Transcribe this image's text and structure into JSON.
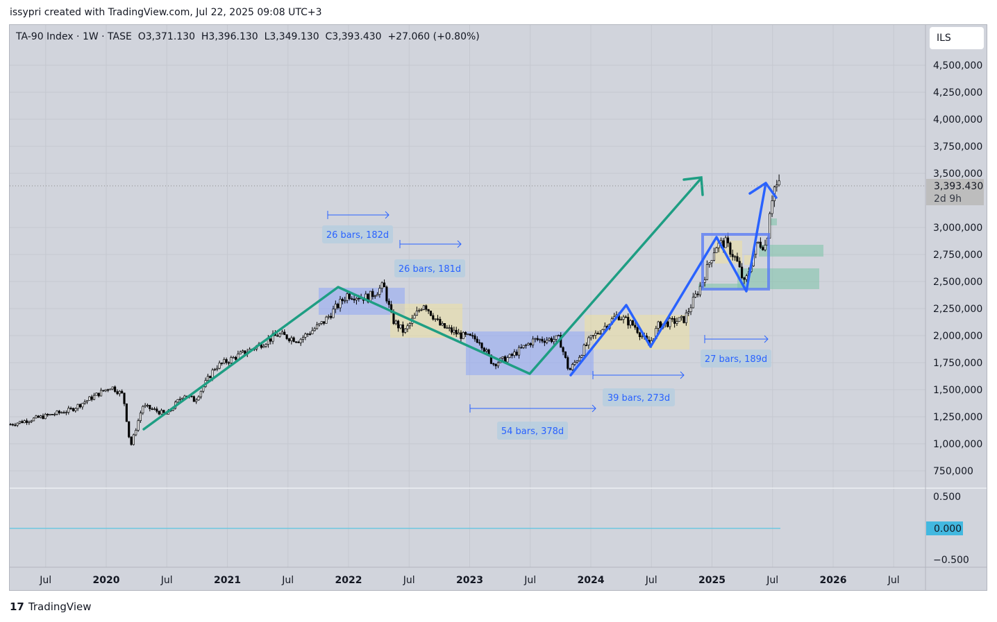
{
  "credit": "issypri created with TradingView.com, Jul 22, 2025 09:08 UTC+3",
  "legend": "TA-90 Index · 1W · TASE  O3,371.130  H3,396.130  L3,349.130  C3,393.430  +27.060 (+0.80%)",
  "currency": "ILS",
  "price_tag": {
    "value": "3,393.430",
    "countdown": "2d 9h"
  },
  "indicator": {
    "ticks": [
      "0.500",
      "0.000",
      "−0.500"
    ],
    "current": "0.000"
  },
  "footer": {
    "brand": "TradingView"
  },
  "measures": [
    "26 bars, 182d",
    "26 bars, 181d",
    "54 bars, 378d",
    "39 bars, 273d",
    "27 bars, 189d"
  ],
  "colors": {
    "green": "#1e9e83",
    "blue": "#2962ff",
    "pane": "#d1d4dc"
  },
  "chart_data": {
    "type": "candlestick",
    "title": "TA-90 Index · 1W · TASE",
    "y_ticks": [
      "4,500,000",
      "4,250,000",
      "4,000,000",
      "3,750,000",
      "3,500,000",
      "3,000,000",
      "2,750,000",
      "2,500,000",
      "2,250,000",
      "2,000,000",
      "1,750,000",
      "1,500,000",
      "1,250,000",
      "1,000,000",
      "750,000"
    ],
    "y_tick_values": [
      4500000,
      4250000,
      4000000,
      3750000,
      3500000,
      3000000,
      2750000,
      2500000,
      2250000,
      2000000,
      1750000,
      1500000,
      1250000,
      1000000,
      750000
    ],
    "ylim": [
      560000,
      4950000
    ],
    "x_ticks": [
      "Jul",
      "2020",
      "Jul",
      "2021",
      "Jul",
      "2022",
      "Jul",
      "2023",
      "Jul",
      "2024",
      "Jul",
      "2025",
      "Jul",
      "2026",
      "Jul"
    ],
    "x_tick_values": [
      2019.5,
      2020,
      2020.5,
      2021,
      2021.5,
      2022,
      2022.5,
      2023,
      2023.5,
      2024,
      2024.5,
      2025,
      2025.5,
      2026,
      2026.5
    ],
    "xlim": [
      2019.2,
      2026.77
    ],
    "series": [
      {
        "name": "TA-90 weekly close (approx.)",
        "x": [
          2019.21,
          2019.7,
          2020.04,
          2020.14,
          2020.2,
          2020.3,
          2020.5,
          2020.64,
          2020.73,
          2020.9,
          2021.19,
          2021.42,
          2021.59,
          2021.79,
          2021.99,
          2022.16,
          2022.29,
          2022.36,
          2022.46,
          2022.62,
          2022.76,
          2022.93,
          2023.08,
          2023.19,
          2023.33,
          2023.53,
          2023.74,
          2023.82,
          2023.99,
          2024.22,
          2024.36,
          2024.48,
          2024.56,
          2024.77,
          2024.91,
          2025.03,
          2025.11,
          2025.2,
          2025.27,
          2025.37,
          2025.45,
          2025.47,
          2025.51,
          2025.56
        ],
        "y": [
          1180000,
          1310000,
          1530000,
          1450000,
          970000,
          1350000,
          1270000,
          1460000,
          1400000,
          1710000,
          1870000,
          2010000,
          1960000,
          2120000,
          2380000,
          2350000,
          2460000,
          2150000,
          2030000,
          2300000,
          2090000,
          2000000,
          1960000,
          1740000,
          1800000,
          1960000,
          1970000,
          1670000,
          1960000,
          2190000,
          2090000,
          1910000,
          2100000,
          2150000,
          2470000,
          2830000,
          2860000,
          2700000,
          2470000,
          2860000,
          2830000,
          3120000,
          3370000,
          3393430
        ]
      }
    ]
  }
}
